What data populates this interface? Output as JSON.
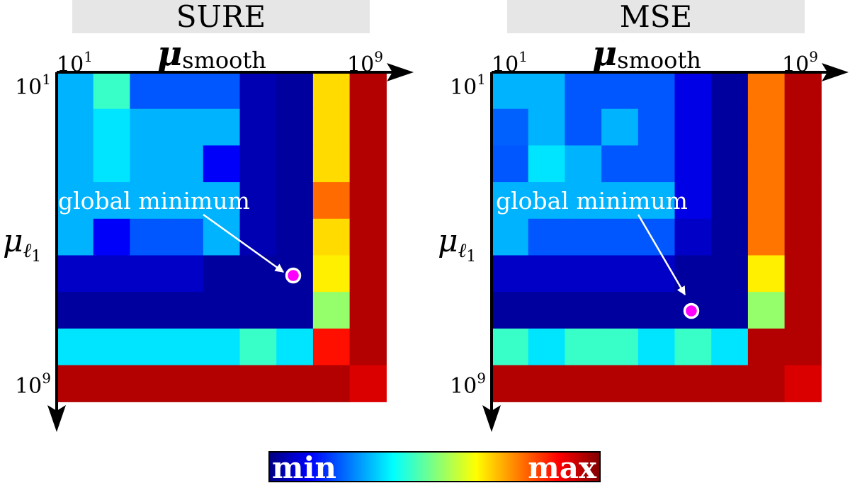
{
  "colorbar": {
    "min_label": "min",
    "max_label": "max"
  },
  "chart_data": [
    {
      "type": "heatmap",
      "title": "SURE",
      "xlabel": {
        "main": "μ",
        "sub": "smooth"
      },
      "ylabel": {
        "main": "μ",
        "sub": "ℓ",
        "subsub": "1"
      },
      "x_range_labels": [
        {
          "base": "10",
          "exp": "1"
        },
        {
          "base": "10",
          "exp": "9"
        }
      ],
      "y_range_labels": [
        {
          "base": "10",
          "exp": "1"
        },
        {
          "base": "10",
          "exp": "9"
        }
      ],
      "value_scale": "0 = min (dark blue) to 1 = max (dark red)",
      "grid": [
        [
          0.3,
          0.43,
          0.21,
          0.21,
          0.21,
          0.05,
          0.03,
          0.66,
          0.95
        ],
        [
          0.3,
          0.35,
          0.3,
          0.3,
          0.3,
          0.05,
          0.03,
          0.66,
          0.95
        ],
        [
          0.3,
          0.35,
          0.3,
          0.3,
          0.12,
          0.05,
          0.03,
          0.66,
          0.95
        ],
        [
          0.3,
          0.3,
          0.3,
          0.3,
          0.3,
          0.05,
          0.03,
          0.77,
          0.95
        ],
        [
          0.3,
          0.12,
          0.21,
          0.21,
          0.3,
          0.05,
          0.03,
          0.66,
          0.95
        ],
        [
          0.07,
          0.07,
          0.07,
          0.07,
          0.03,
          0.03,
          0.03,
          0.64,
          0.95
        ],
        [
          0.03,
          0.03,
          0.03,
          0.03,
          0.03,
          0.03,
          0.03,
          0.52,
          0.95
        ],
        [
          0.35,
          0.35,
          0.35,
          0.35,
          0.35,
          0.43,
          0.35,
          0.86,
          0.95
        ],
        [
          0.95,
          0.95,
          0.95,
          0.95,
          0.95,
          0.95,
          0.95,
          0.95,
          0.91
        ]
      ],
      "annotation": {
        "text": "global minimum",
        "marker_cell": [
          5.5,
          6.5
        ]
      }
    },
    {
      "type": "heatmap",
      "title": "MSE",
      "xlabel": {
        "main": "μ",
        "sub": "smooth"
      },
      "ylabel": {
        "main": "μ",
        "sub": "ℓ",
        "subsub": "1"
      },
      "x_range_labels": [
        {
          "base": "10",
          "exp": "1"
        },
        {
          "base": "10",
          "exp": "9"
        }
      ],
      "y_range_labels": [
        {
          "base": "10",
          "exp": "1"
        },
        {
          "base": "10",
          "exp": "9"
        }
      ],
      "value_scale": "0 = min (dark blue) to 1 = max (dark red)",
      "grid": [
        [
          0.3,
          0.3,
          0.21,
          0.21,
          0.21,
          0.1,
          0.03,
          0.76,
          0.95
        ],
        [
          0.22,
          0.3,
          0.21,
          0.3,
          0.21,
          0.1,
          0.03,
          0.76,
          0.95
        ],
        [
          0.21,
          0.35,
          0.3,
          0.21,
          0.21,
          0.1,
          0.03,
          0.76,
          0.95
        ],
        [
          0.3,
          0.3,
          0.3,
          0.3,
          0.3,
          0.1,
          0.03,
          0.76,
          0.95
        ],
        [
          0.3,
          0.21,
          0.21,
          0.21,
          0.21,
          0.07,
          0.03,
          0.76,
          0.95
        ],
        [
          0.07,
          0.07,
          0.07,
          0.07,
          0.07,
          0.03,
          0.03,
          0.64,
          0.95
        ],
        [
          0.03,
          0.03,
          0.03,
          0.03,
          0.03,
          0.03,
          0.03,
          0.52,
          0.95
        ],
        [
          0.43,
          0.35,
          0.43,
          0.43,
          0.35,
          0.43,
          0.35,
          0.95,
          0.95
        ],
        [
          0.95,
          0.95,
          0.95,
          0.95,
          0.95,
          0.95,
          0.95,
          0.95,
          0.91
        ]
      ],
      "annotation": {
        "text": "global minimum",
        "marker_cell": [
          6.5,
          5.5
        ]
      }
    }
  ]
}
